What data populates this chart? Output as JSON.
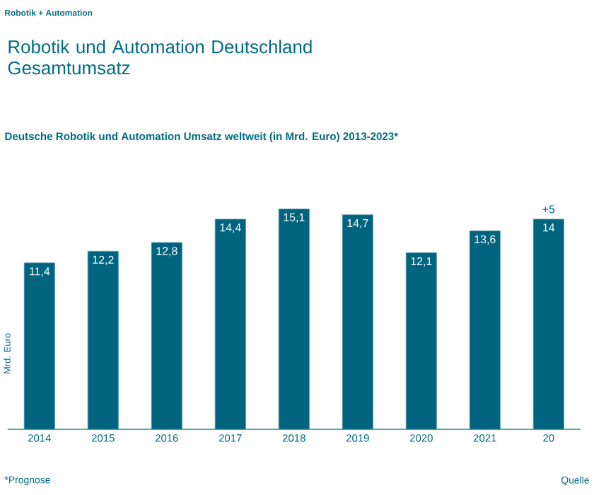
{
  "chart_data": {
    "type": "bar",
    "title": "Robotik und Automation Deutschland Gesamtumsatz",
    "subtitle": "Deutsche Robotik und Automation Umsatz weltweit (in Mrd. Euro) 2013-2023*",
    "ylabel": "Mrd. Euro",
    "categories": [
      "2014",
      "2015",
      "2016",
      "2017",
      "2018",
      "2019",
      "2020",
      "2021",
      "20"
    ],
    "values": [
      11.4,
      12.2,
      12.8,
      14.4,
      15.1,
      14.7,
      12.1,
      13.6,
      14.4
    ],
    "value_labels": [
      "11,4",
      "12,2",
      "12,8",
      "14,4",
      "15,1",
      "14,7",
      "12,1",
      "13,6",
      "14"
    ],
    "color": "#00647f",
    "annotations": [
      "Robotik + Automation",
      "*Prognose",
      "Quelle",
      {
        "text": "+5",
        "x": "20",
        "y": 14.4
      }
    ]
  }
}
